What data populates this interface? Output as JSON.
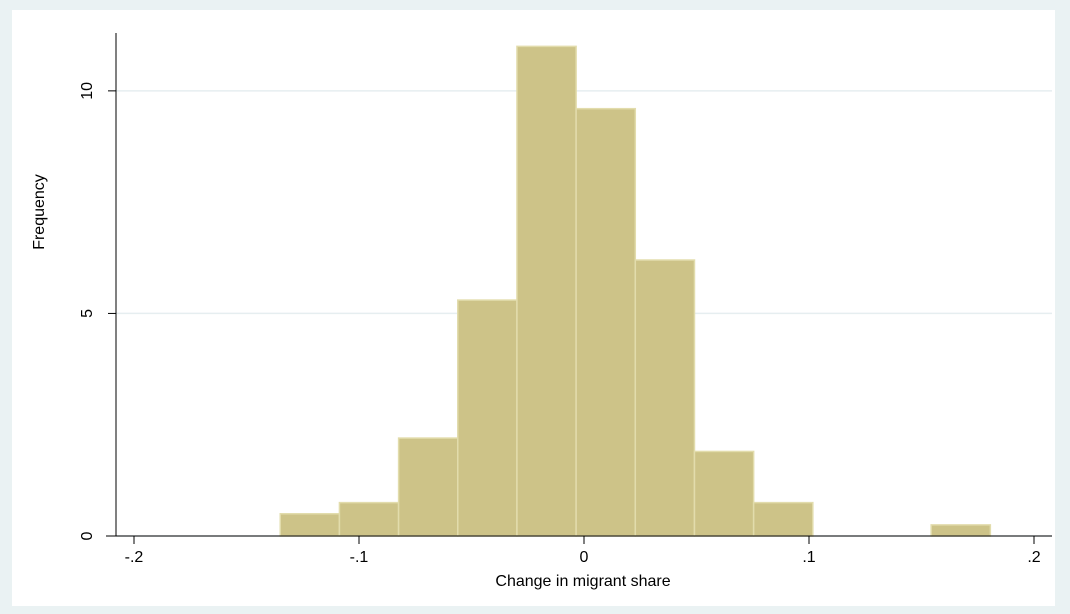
{
  "chart_data": {
    "type": "histogram",
    "xlabel": "Change in migrant share",
    "ylabel": "Frequency",
    "bins": [
      -0.135,
      -0.1087,
      -0.0824,
      -0.0561,
      -0.0298,
      -0.0035,
      0.0228,
      0.0491,
      0.0754,
      0.1017,
      0.128,
      0.1543,
      0.1806
    ],
    "values": [
      0.5,
      0.75,
      2.2,
      5.3,
      11,
      9.6,
      6.2,
      1.9,
      0.75,
      0,
      0,
      0.25
    ],
    "color": "#cdc388",
    "xlim": [
      -0.208,
      0.208
    ],
    "ylim": [
      0,
      11.3
    ],
    "xticks": [
      {
        "value": -0.2,
        "label": "-.2"
      },
      {
        "value": -0.1,
        "label": "-.1"
      },
      0,
      {
        "value": 0.1,
        "label": ".1"
      },
      {
        "value": 0.2,
        "label": ".2"
      }
    ],
    "yticks": [
      0,
      5,
      10
    ],
    "grid": true
  }
}
